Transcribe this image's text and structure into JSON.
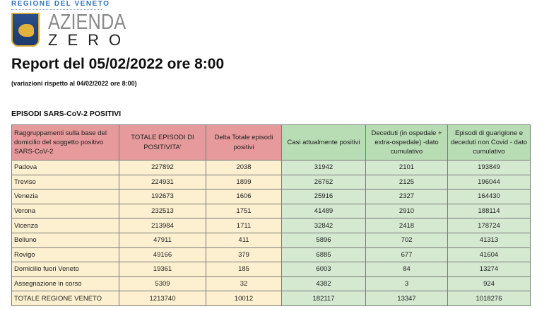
{
  "logo": {
    "region": "REGIONE DEL VENETO",
    "name_line1": "AZIENDA",
    "name_line2": "ZERO"
  },
  "title": "Report del 05/02/2022 ore 8:00",
  "subtitle": "(variazioni rispetto al 04/02/2022 ore 8:00)",
  "section": "EPISODI SARS-CoV-2 POSITIVI",
  "colors": {
    "header_pink": "#e79a9c",
    "header_green": "#b8dcb4",
    "cell_cream": "#fdf0d0",
    "cell_green": "#d5e9d1"
  },
  "table": {
    "headers": [
      "Raggruppamenti sulla base del domicilio del soggetto positivo SARS-CoV-2",
      "TOTALE EPISODI DI POSITIVITA'",
      "Delta Totale episodi positivi",
      "Casi attualmente positivi",
      "Deceduti (in ospedale + extra-ospedale) -dato cumulativo",
      "Episodi di guarigione e deceduti non Covid - dato cumulativo"
    ],
    "rows": [
      [
        "Padova",
        "227892",
        "2038",
        "31942",
        "2101",
        "193849"
      ],
      [
        "Treviso",
        "224931",
        "1899",
        "26762",
        "2125",
        "196044"
      ],
      [
        "Venezia",
        "192673",
        "1606",
        "25916",
        "2327",
        "164430"
      ],
      [
        "Verona",
        "232513",
        "1751",
        "41489",
        "2910",
        "188114"
      ],
      [
        "Vicenza",
        "213984",
        "1711",
        "32842",
        "2418",
        "178724"
      ],
      [
        "Belluno",
        "47911",
        "411",
        "5896",
        "702",
        "41313"
      ],
      [
        "Rovigo",
        "49166",
        "379",
        "6885",
        "677",
        "41604"
      ],
      [
        "Domicilio fuori Veneto",
        "19361",
        "185",
        "6003",
        "84",
        "13274"
      ],
      [
        "Assegnazione in corso",
        "5309",
        "32",
        "4382",
        "3",
        "924"
      ],
      [
        "TOTALE REGIONE VENETO",
        "1213740",
        "10012",
        "182117",
        "13347",
        "1018276"
      ]
    ]
  }
}
